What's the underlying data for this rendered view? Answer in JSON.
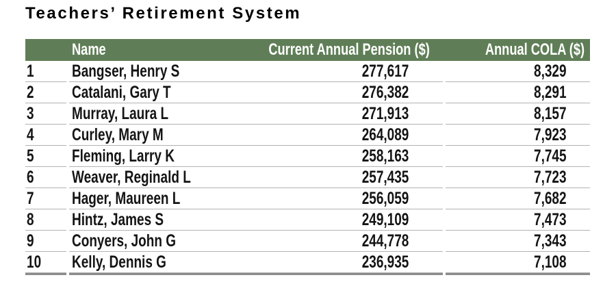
{
  "title": "Teachers’ Retirement System",
  "table": {
    "columns": {
      "rank": "",
      "name": "Name",
      "pension": "Current Annual Pension ($)",
      "cola": "Annual COLA ($)"
    },
    "rows": [
      {
        "rank": "1",
        "name": "Bangser, Henry S",
        "pension": "277,617",
        "cola": "8,329"
      },
      {
        "rank": "2",
        "name": "Catalani, Gary T",
        "pension": "276,382",
        "cola": "8,291"
      },
      {
        "rank": "3",
        "name": "Murray, Laura L",
        "pension": "271,913",
        "cola": "8,157"
      },
      {
        "rank": "4",
        "name": "Curley, Mary M",
        "pension": "264,089",
        "cola": "7,923"
      },
      {
        "rank": "5",
        "name": "Fleming, Larry K",
        "pension": "258,163",
        "cola": "7,745"
      },
      {
        "rank": "6",
        "name": "Weaver, Reginald L",
        "pension": "257,435",
        "cola": "7,723"
      },
      {
        "rank": "7",
        "name": "Hager, Maureen L",
        "pension": "256,059",
        "cola": "7,682"
      },
      {
        "rank": "8",
        "name": "Hintz, James S",
        "pension": "249,109",
        "cola": "7,473"
      },
      {
        "rank": "9",
        "name": "Conyers, John G",
        "pension": "244,778",
        "cola": "7,343"
      },
      {
        "rank": "10",
        "name": "Kelly, Dennis G",
        "pension": "236,935",
        "cola": "7,108"
      }
    ]
  },
  "colors": {
    "header_bg": "#5f7e57",
    "header_text": "#ffffff",
    "row_line": "#b2b2b2",
    "bottom_rule": "#8c8c8c",
    "body_text": "#141414",
    "title_text": "#000000"
  }
}
